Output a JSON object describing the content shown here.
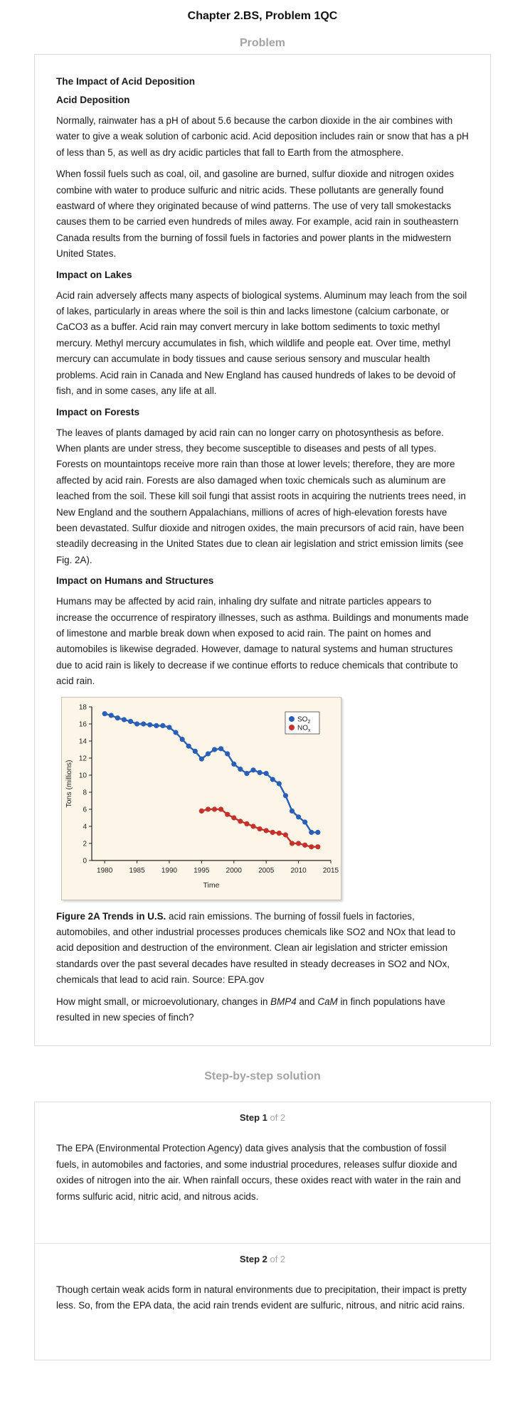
{
  "header": {
    "title": "Chapter 2.BS, Problem 1QC"
  },
  "problem": {
    "heading": "Problem",
    "main_title": "The Impact of Acid Deposition",
    "sections": [
      {
        "title": "Acid Deposition",
        "paragraphs": [
          "Normally, rainwater has a pH of about 5.6 because the carbon dioxide in the air combines with water to give a weak solution of carbonic acid. Acid deposition includes rain or snow that has a pH of less than 5, as well as dry acidic particles that fall to Earth from the atmosphere.",
          "When fossil fuels such as coal, oil, and gasoline are burned, sulfur dioxide and nitrogen oxides combine with water to produce sulfuric and nitric acids. These pollutants are generally found eastward of where they originated because of wind patterns. The use of very tall smokestacks causes them to be carried even hundreds of miles away. For example, acid rain in southeastern Canada results from the burning of fossil fuels in factories and power plants in the midwestern United States."
        ]
      },
      {
        "title": "Impact on Lakes",
        "paragraphs": [
          "Acid rain adversely affects many aspects of biological systems. Aluminum may leach from the soil of lakes, particularly in areas where the soil is thin and lacks limestone (calcium carbonate, or CaCO3 as a buffer. Acid rain may convert mercury in lake bottom sediments to toxic methyl mercury. Methyl mercury accumulates in fish, which wildlife and people eat. Over time, methyl mercury can accumulate in body tissues and cause serious sensory and muscular health problems. Acid rain in Canada and New England has caused hundreds of lakes to be devoid of fish, and in some cases, any life at all."
        ]
      },
      {
        "title": "Impact on Forests",
        "paragraphs": [
          "The leaves of plants damaged by acid rain can no longer carry on photosynthesis as before. When plants are under stress, they become susceptible to diseases and pests of all types. Forests on mountaintops receive more rain than those at lower levels; therefore, they are more affected by acid rain. Forests are also damaged when toxic chemicals such as aluminum are leached from the soil. These kill soil fungi that assist roots in acquiring the nutrients trees need, in New England and the southern Appalachians, millions of acres of high-elevation forests have been devastated. Sulfur dioxide and nitrogen oxides, the main precursors of acid rain, have been steadily decreasing in the United States due to clean air legislation and strict emission limits (see Fig. 2A)."
        ]
      },
      {
        "title": "Impact on Humans and Structures",
        "paragraphs": [
          "Humans may be affected by acid rain, inhaling dry sulfate and nitrate particles appears to increase the occurrence of respiratory illnesses, such as asthma. Buildings and monuments made of limestone and marble break down when exposed to acid rain. The paint on homes and automobiles is likewise degraded. However, damage to natural systems and human structures due to acid rain is likely to decrease if we continue efforts to reduce chemicals that contribute to acid rain."
        ]
      }
    ],
    "figure_caption_lead": "Figure 2A Trends in U.S.",
    "figure_caption_rest": " acid rain emissions. The burning of fossil fuels in factories, automobiles, and other industrial processes produces chemicals like SO2 and NOx that lead to acid deposition and destruction of the environment. Clean air legislation and stricter emission standards over the past several decades have resulted in steady decreases in SO2 and NOx, chemicals that lead to acid rain. Source: EPA.gov",
    "question_part1": "How might small, or microevolutionary, changes in ",
    "question_term1": "BMP4",
    "question_and": " and ",
    "question_term2": "CaM",
    "question_part2": " in finch populations have resulted in new species of finch?"
  },
  "solution": {
    "heading": "Step-by-step solution",
    "steps": [
      {
        "label": "Step 1",
        "of": " of 2",
        "text": "The EPA (Environmental Protection Agency) data gives analysis that the combustion of fossil fuels, in automobiles and factories, and some industrial procedures, releases sulfur dioxide and oxides of nitrogen into the air. When rainfall occurs, these oxides react with water in the rain and forms sulfuric acid, nitric acid, and nitrous acids."
      },
      {
        "label": "Step 2",
        "of": " of 2",
        "text": "Though certain weak acids form in natural environments due to precipitation, their impact is pretty less. So, from the EPA data, the acid rain trends evident are sulfuric, nitrous, and nitric acid rains."
      }
    ]
  },
  "chart_data": {
    "type": "line",
    "xlabel": "Time",
    "ylabel": "Tons (millions)",
    "xlim": [
      1978,
      2015
    ],
    "ylim": [
      0,
      18
    ],
    "x_ticks": [
      1980,
      1985,
      1990,
      1995,
      2000,
      2005,
      2010,
      2015
    ],
    "y_ticks": [
      0,
      2,
      4,
      6,
      8,
      10,
      12,
      14,
      16,
      18
    ],
    "grid": false,
    "legend_position": "top-right",
    "series": [
      {
        "name": "SO2",
        "legend_main": "SO",
        "legend_sub": "2",
        "color": "#2a5fb8",
        "x": [
          1980,
          1981,
          1982,
          1983,
          1984,
          1985,
          1986,
          1987,
          1988,
          1989,
          1990,
          1991,
          1992,
          1993,
          1994,
          1995,
          1996,
          1997,
          1998,
          1999,
          2000,
          2001,
          2002,
          2003,
          2004,
          2005,
          2006,
          2007,
          2008,
          2009,
          2010,
          2011,
          2012,
          2013
        ],
        "values": [
          17.2,
          17.0,
          16.7,
          16.5,
          16.3,
          16.0,
          16.0,
          15.9,
          15.8,
          15.8,
          15.6,
          15.0,
          14.2,
          13.4,
          12.8,
          11.9,
          12.5,
          13.0,
          13.1,
          12.5,
          11.3,
          10.7,
          10.2,
          10.6,
          10.3,
          10.2,
          9.5,
          9.0,
          7.6,
          5.8,
          5.1,
          4.5,
          3.3,
          3.3
        ]
      },
      {
        "name": "NOx",
        "legend_main": "NO",
        "legend_sub": "x",
        "color": "#c4322b",
        "x": [
          1995,
          1996,
          1997,
          1998,
          1999,
          2000,
          2001,
          2002,
          2003,
          2004,
          2005,
          2006,
          2007,
          2008,
          2009,
          2010,
          2011,
          2012,
          2013
        ],
        "values": [
          5.8,
          6.0,
          6.0,
          6.0,
          5.4,
          5.0,
          4.6,
          4.3,
          4.0,
          3.7,
          3.5,
          3.3,
          3.2,
          3.0,
          2.0,
          2.0,
          1.8,
          1.6,
          1.6
        ]
      }
    ]
  }
}
